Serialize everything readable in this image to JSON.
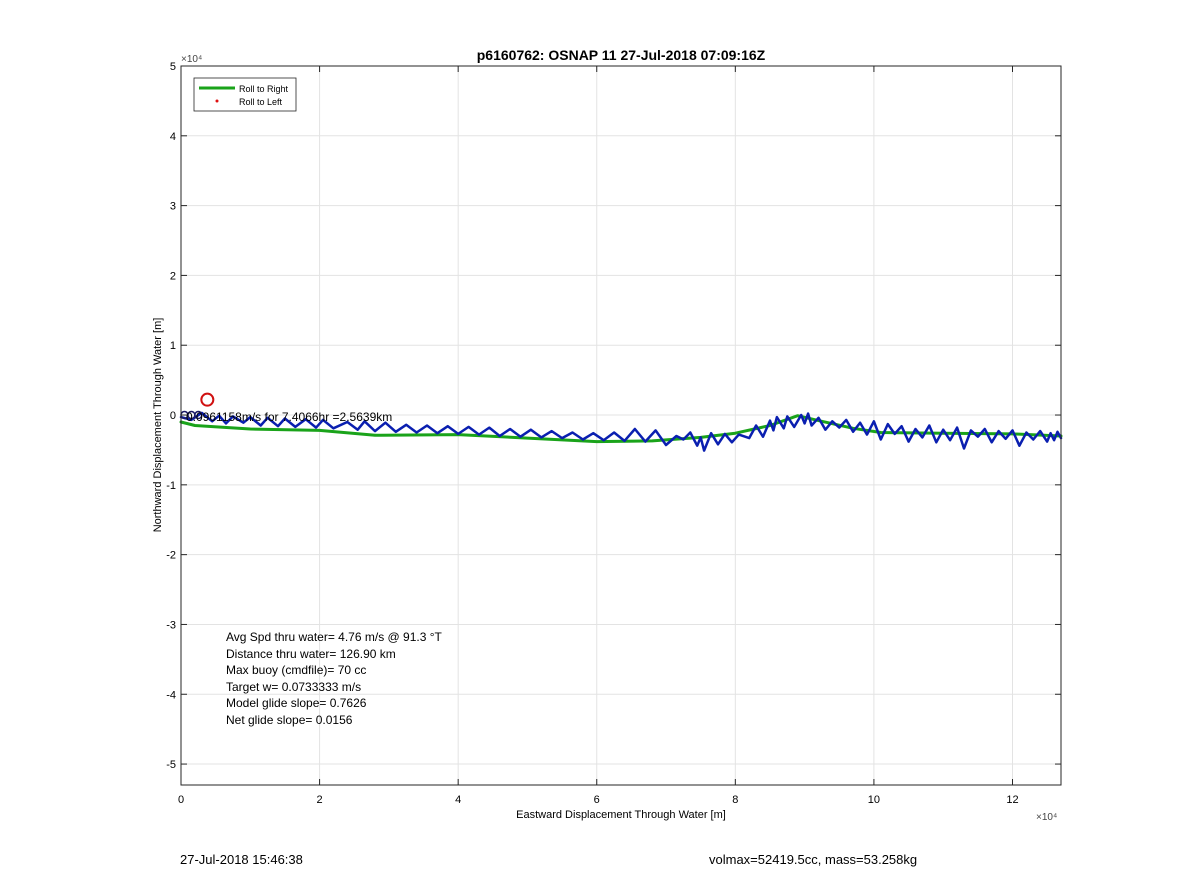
{
  "chart_data": {
    "type": "line",
    "title": "p6160762: OSNAP 11 27-Jul-2018 07:09:16Z",
    "xlabel": "Eastward Displacement Through Water [m]",
    "ylabel": "Northward Displacement Through Water [m]",
    "x_exponent": "×10⁴",
    "y_exponent": "×10⁴",
    "xlim": [
      0,
      127000
    ],
    "ylim": [
      -53000,
      50000
    ],
    "xticks": [
      0,
      20000,
      40000,
      60000,
      80000,
      100000,
      120000
    ],
    "xtick_labels": [
      "0",
      "2",
      "4",
      "6",
      "8",
      "10",
      "12"
    ],
    "yticks": [
      -50000,
      -40000,
      -30000,
      -20000,
      -10000,
      0,
      10000,
      20000,
      30000,
      40000,
      50000
    ],
    "ytick_labels": [
      "-5",
      "-4",
      "-3",
      "-2",
      "-1",
      "0",
      "1",
      "2",
      "3",
      "4",
      "5"
    ],
    "grid": true,
    "legend": {
      "position": "top-left",
      "entries": [
        {
          "label": "Roll to Right",
          "color": "#1aa31a",
          "style": "line"
        },
        {
          "label": "Roll to Left",
          "color": "#e01010",
          "style": "dot"
        }
      ]
    },
    "series": [
      {
        "name": "Roll to Right",
        "color": "#1aa31a",
        "x": [
          0,
          2000,
          10000,
          20000,
          28000,
          40000,
          50000,
          60000,
          68000,
          75000,
          80000,
          85000,
          89000,
          92000,
          97000,
          101000,
          110000,
          120000,
          127000
        ],
        "y": [
          -1000,
          -1500,
          -2000,
          -2200,
          -2900,
          -2800,
          -3300,
          -3800,
          -3700,
          -3200,
          -2600,
          -1500,
          -100,
          -800,
          -1900,
          -2500,
          -2600,
          -2700,
          -3000
        ]
      },
      {
        "color": "#0a1fb0",
        "x": [
          0,
          1500,
          3000,
          4500,
          5500,
          6500,
          7500,
          9000,
          10000,
          11500,
          12500,
          14000,
          15000,
          16500,
          18000,
          19500,
          20500,
          22000,
          24000,
          25500,
          26500,
          28000,
          29500,
          31000,
          32500,
          34000,
          35500,
          37000,
          38500,
          40000,
          41500,
          43000,
          44500,
          46000,
          47500,
          49000,
          50500,
          52000,
          53500,
          55000,
          56500,
          58000,
          59500,
          61000,
          62500,
          64000,
          65500,
          67000,
          68500,
          70000,
          71500,
          72500,
          73500,
          74500,
          75000,
          75500,
          76500,
          77500,
          78500,
          79500,
          80500,
          82000,
          83000,
          84000,
          85000,
          85500,
          86000,
          87000,
          87500,
          88500,
          89500,
          90000,
          90500,
          91000,
          92000,
          93000,
          94000,
          95000,
          96000,
          97000,
          98000,
          99000,
          100000,
          101000,
          102000,
          103000,
          104000,
          105000,
          106000,
          107000,
          108000,
          109000,
          110000,
          111000,
          112000,
          113000,
          114000,
          115000,
          116000,
          117000,
          118000,
          119000,
          120000,
          121000,
          122000,
          123000,
          124000,
          125000,
          125500,
          126000,
          126500,
          127000
        ],
        "y": [
          -300,
          -700,
          300,
          -900,
          -100,
          -1200,
          -200,
          -1100,
          -300,
          -1500,
          -400,
          -1600,
          -500,
          -1700,
          -600,
          -1800,
          -700,
          -1900,
          -1000,
          -2100,
          -900,
          -2300,
          -1100,
          -2400,
          -1400,
          -2500,
          -1500,
          -2600,
          -1600,
          -2700,
          -1700,
          -2800,
          -1800,
          -3000,
          -2000,
          -3100,
          -2100,
          -3200,
          -2300,
          -3300,
          -2500,
          -3500,
          -2600,
          -3600,
          -2500,
          -3700,
          -2000,
          -3800,
          -2200,
          -4300,
          -3000,
          -3500,
          -2500,
          -4400,
          -3200,
          -5100,
          -2600,
          -4200,
          -2700,
          -3900,
          -2800,
          -3300,
          -1500,
          -3100,
          -800,
          -2200,
          -300,
          -1900,
          -200,
          -1700,
          0,
          -1200,
          200,
          -1500,
          -400,
          -2100,
          -900,
          -1800,
          -700,
          -2400,
          -1100,
          -2800,
          -900,
          -3500,
          -1300,
          -2700,
          -1600,
          -3800,
          -2000,
          -3200,
          -1500,
          -3900,
          -2100,
          -3600,
          -1800,
          -4800,
          -2200,
          -3100,
          -2000,
          -3900,
          -2300,
          -3400,
          -2200,
          -4400,
          -2500,
          -3500,
          -2300,
          -3800,
          -2600,
          -3600,
          -2400,
          -3300
        ]
      }
    ],
    "markers": [
      {
        "x": 3800,
        "y": 2200,
        "shape": "circle",
        "color": "#d01010"
      },
      {
        "x": 500,
        "y": 0,
        "shape": "small-circle",
        "color": "#1a1a66"
      },
      {
        "x": 1500,
        "y": 0,
        "shape": "small-circle",
        "color": "#1a1a66"
      },
      {
        "x": 2500,
        "y": 0,
        "shape": "small-circle",
        "color": "#1a1a66"
      }
    ],
    "annotations": {
      "current_label": "0.0961158m/s for 7.4066hr =2.5639km",
      "stats": [
        "Avg Spd thru water=  4.76 m/s @  91.3 °T",
        "Distance thru water= 126.90 km",
        "Max buoy (cmdfile)= 70 cc",
        "Target w= 0.0733333 m/s",
        "Model glide slope= 0.7626",
        "Net glide slope= 0.0156"
      ]
    }
  },
  "footer": {
    "left": "27-Jul-2018 15:46:38",
    "right": "volmax=52419.5cc, mass=53.258kg"
  }
}
